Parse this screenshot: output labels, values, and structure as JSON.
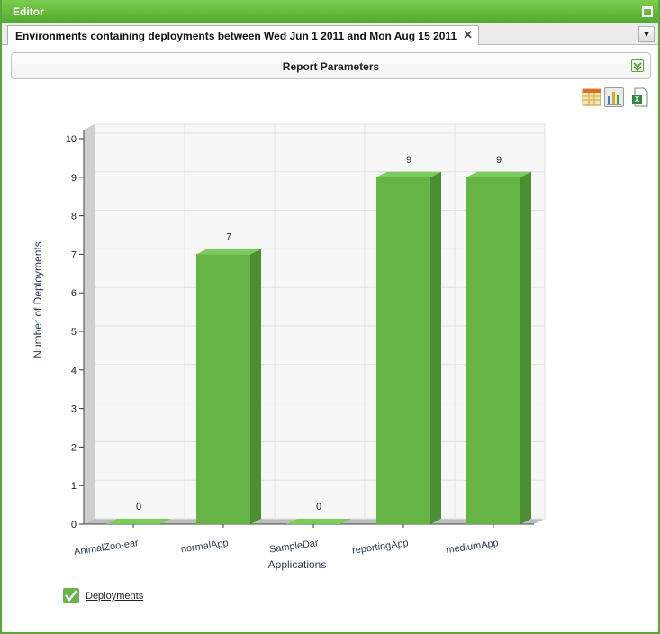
{
  "window": {
    "title": "Editor"
  },
  "tab": {
    "label": "Environments containing deployments between Wed Jun 1 2011 and Mon Aug 15 2011",
    "close": "✕"
  },
  "report_params": {
    "label": "Report Parameters"
  },
  "toolbar": {
    "icons": [
      "table-view-icon",
      "chart-view-icon",
      "excel-export-icon"
    ]
  },
  "colors": {
    "bar_front": "#66b446",
    "bar_side": "#4a8f32",
    "bar_top": "#7acb5a",
    "accent": "#5aa83a"
  },
  "chart_data": {
    "type": "bar",
    "categories": [
      "AnimalZoo-ear",
      "normalApp",
      "SampleDar",
      "reportingApp",
      "mediumApp"
    ],
    "series": [
      {
        "name": "Deployments",
        "values": [
          0,
          7,
          0,
          9,
          9
        ]
      }
    ],
    "xlabel": "Applications",
    "ylabel": "Number of Deployments",
    "ylim": [
      0,
      10
    ],
    "yticks": [
      "0",
      "1",
      "2",
      "3",
      "4",
      "5",
      "6",
      "7",
      "8",
      "9",
      "10"
    ],
    "data_labels": [
      "0",
      "7",
      "0",
      "9",
      "9"
    ],
    "grid": true,
    "legend_position": "bottom-left"
  }
}
